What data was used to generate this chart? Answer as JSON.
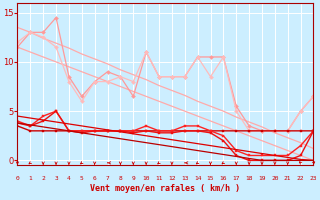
{
  "xlabel": "Vent moyen/en rafales ( km/h )",
  "bg_color": "#cceeff",
  "grid_color": "#ffffff",
  "yticks": [
    0,
    5,
    10,
    15
  ],
  "xlim": [
    0,
    23
  ],
  "ylim": [
    -0.5,
    16
  ],
  "x": [
    0,
    1,
    2,
    3,
    4,
    5,
    6,
    7,
    8,
    9,
    10,
    11,
    12,
    13,
    14,
    15,
    16,
    17,
    18,
    19,
    20,
    21,
    22,
    23
  ],
  "series": [
    {
      "name": "diag_upper1",
      "color": "#ffaaaa",
      "lw": 0.9,
      "marker": null,
      "ms": 0,
      "y": [
        11.5,
        11.0,
        10.5,
        10.0,
        9.5,
        9.0,
        8.5,
        8.0,
        7.5,
        7.0,
        6.5,
        6.0,
        5.5,
        5.0,
        4.5,
        4.0,
        3.5,
        3.0,
        2.5,
        2.0,
        1.5,
        1.0,
        0.5,
        0.0
      ]
    },
    {
      "name": "diag_upper2",
      "color": "#ffaaaa",
      "lw": 0.9,
      "marker": null,
      "ms": 0,
      "y": [
        13.5,
        13.0,
        12.4,
        11.9,
        11.4,
        10.8,
        10.3,
        9.8,
        9.2,
        8.7,
        8.2,
        7.6,
        7.1,
        6.6,
        6.0,
        5.5,
        5.0,
        4.4,
        3.9,
        3.4,
        2.8,
        2.3,
        1.8,
        1.2
      ]
    },
    {
      "name": "upper_zigzag1",
      "color": "#ff9999",
      "lw": 0.9,
      "marker": "D",
      "ms": 2.0,
      "y": [
        11.5,
        13.0,
        13.0,
        14.5,
        8.5,
        6.5,
        8.0,
        9.0,
        8.5,
        6.5,
        11.0,
        8.5,
        8.5,
        8.5,
        10.5,
        10.5,
        10.5,
        5.5,
        3.5,
        3.0,
        3.0,
        3.0,
        5.0,
        6.5
      ]
    },
    {
      "name": "upper_zigzag2",
      "color": "#ffbbbb",
      "lw": 0.9,
      "marker": "D",
      "ms": 2.0,
      "y": [
        12.0,
        13.0,
        12.5,
        11.5,
        8.0,
        6.0,
        8.0,
        8.0,
        8.5,
        8.0,
        11.0,
        8.5,
        8.5,
        8.5,
        10.5,
        8.5,
        10.5,
        5.0,
        3.0,
        3.0,
        3.0,
        3.0,
        5.0,
        6.5
      ]
    },
    {
      "name": "lower_flat1",
      "color": "#cc0000",
      "lw": 1.0,
      "marker": "s",
      "ms": 2.0,
      "y": [
        3.5,
        3.0,
        3.0,
        3.0,
        3.0,
        3.0,
        3.0,
        3.0,
        3.0,
        3.0,
        3.0,
        3.0,
        3.0,
        3.0,
        3.0,
        3.0,
        3.0,
        3.0,
        3.0,
        3.0,
        3.0,
        3.0,
        3.0,
        3.0
      ]
    },
    {
      "name": "lower_zigzag1",
      "color": "#ff2222",
      "lw": 1.0,
      "marker": "s",
      "ms": 2.0,
      "y": [
        4.0,
        3.5,
        4.5,
        5.0,
        3.0,
        3.0,
        3.0,
        3.0,
        3.0,
        3.0,
        3.5,
        3.0,
        3.0,
        3.5,
        3.5,
        3.0,
        2.5,
        1.0,
        0.5,
        0.5,
        0.5,
        0.5,
        1.5,
        3.0
      ]
    },
    {
      "name": "lower_zigzag2",
      "color": "#ee1111",
      "lw": 1.0,
      "marker": "s",
      "ms": 2.0,
      "y": [
        3.8,
        3.5,
        4.0,
        5.0,
        3.0,
        2.8,
        3.0,
        3.0,
        3.0,
        2.8,
        3.0,
        2.8,
        2.8,
        3.0,
        3.0,
        2.8,
        2.0,
        0.5,
        0.0,
        0.0,
        0.0,
        0.0,
        0.5,
        3.0
      ]
    },
    {
      "name": "lower_diag1",
      "color": "#dd0000",
      "lw": 0.9,
      "marker": null,
      "ms": 0,
      "y": [
        4.5,
        4.3,
        4.1,
        3.9,
        3.7,
        3.5,
        3.3,
        3.1,
        2.9,
        2.7,
        2.5,
        2.3,
        2.1,
        1.9,
        1.7,
        1.5,
        1.3,
        1.1,
        0.9,
        0.7,
        0.5,
        0.3,
        0.1,
        0.0
      ]
    },
    {
      "name": "lower_diag2",
      "color": "#bb0000",
      "lw": 0.9,
      "marker": null,
      "ms": 0,
      "y": [
        3.8,
        3.6,
        3.4,
        3.2,
        3.0,
        2.8,
        2.6,
        2.4,
        2.2,
        2.0,
        1.8,
        1.6,
        1.4,
        1.2,
        1.0,
        0.8,
        0.6,
        0.4,
        0.2,
        0.0,
        0.0,
        0.0,
        0.0,
        0.0
      ]
    }
  ],
  "arrow_angles": [
    180,
    225,
    180,
    180,
    180,
    225,
    180,
    270,
    180,
    180,
    180,
    225,
    180,
    270,
    225,
    180,
    225,
    180,
    180,
    180,
    180,
    180,
    315,
    45
  ]
}
